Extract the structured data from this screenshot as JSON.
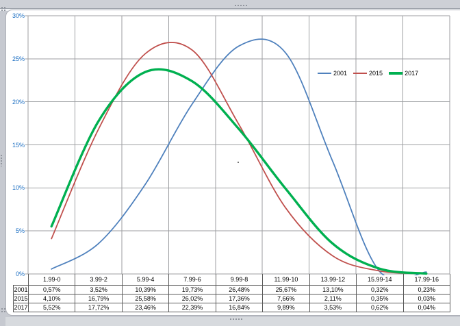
{
  "chart_data": {
    "type": "line",
    "smoothed": true,
    "title": "",
    "xlabel": "",
    "ylabel": "",
    "categories": [
      "1.99-0",
      "3.99-2",
      "5.99-4",
      "7.99-6",
      "9.99-8",
      "11.99-10",
      "13.99-12",
      "15.99-14",
      "17.99-16"
    ],
    "series": [
      {
        "name": "2001",
        "color": "#4F81BD",
        "stroke_width": 1.8,
        "values": [
          0.57,
          3.52,
          10.39,
          19.73,
          26.48,
          25.67,
          13.1,
          0.32,
          0.23
        ]
      },
      {
        "name": "2015",
        "color": "#C0504D",
        "stroke_width": 1.8,
        "values": [
          4.1,
          16.79,
          25.58,
          26.02,
          17.36,
          7.66,
          2.11,
          0.35,
          0.03
        ]
      },
      {
        "name": "2017",
        "color": "#00B050",
        "stroke_width": 3.4,
        "values": [
          5.52,
          17.72,
          23.46,
          22.39,
          16.84,
          9.89,
          3.53,
          0.62,
          0.04
        ]
      }
    ],
    "ylim": [
      0,
      30
    ],
    "y_tick_step": 5,
    "y_axis_labels": [
      "30%",
      "25%",
      "20%",
      "15%",
      "10%",
      "5%",
      "0%"
    ],
    "grid": true,
    "legend_position": "inside-right"
  },
  "data_table": {
    "rows": [
      {
        "label": "2001",
        "values": [
          "0,57%",
          "3,52%",
          "10,39%",
          "19,73%",
          "26,48%",
          "25,67%",
          "13,10%",
          "0,32%",
          "0,23%"
        ]
      },
      {
        "label": "2015",
        "values": [
          "4,10%",
          "16,79%",
          "25,58%",
          "26,02%",
          "17,36%",
          "7,66%",
          "2,11%",
          "0,35%",
          "0,03%"
        ]
      },
      {
        "label": "2017",
        "values": [
          "5,52%",
          "17,72%",
          "23,46%",
          "22,39%",
          "16,84%",
          "9,89%",
          "3,53%",
          "0,62%",
          "0,04%"
        ]
      }
    ]
  },
  "legend": {
    "items": [
      {
        "label": "2001",
        "color": "#4F81BD",
        "thick": false
      },
      {
        "label": "2015",
        "color": "#C0504D",
        "thick": false
      },
      {
        "label": "2017",
        "color": "#00B050",
        "thick": true
      }
    ]
  },
  "colors": {
    "gridline": "#9c9ea1",
    "axis_label": "#1b6ec2",
    "table_border": "#5a5a5a",
    "page_background": "#c6c9d0",
    "chart_background": "#ffffff"
  }
}
